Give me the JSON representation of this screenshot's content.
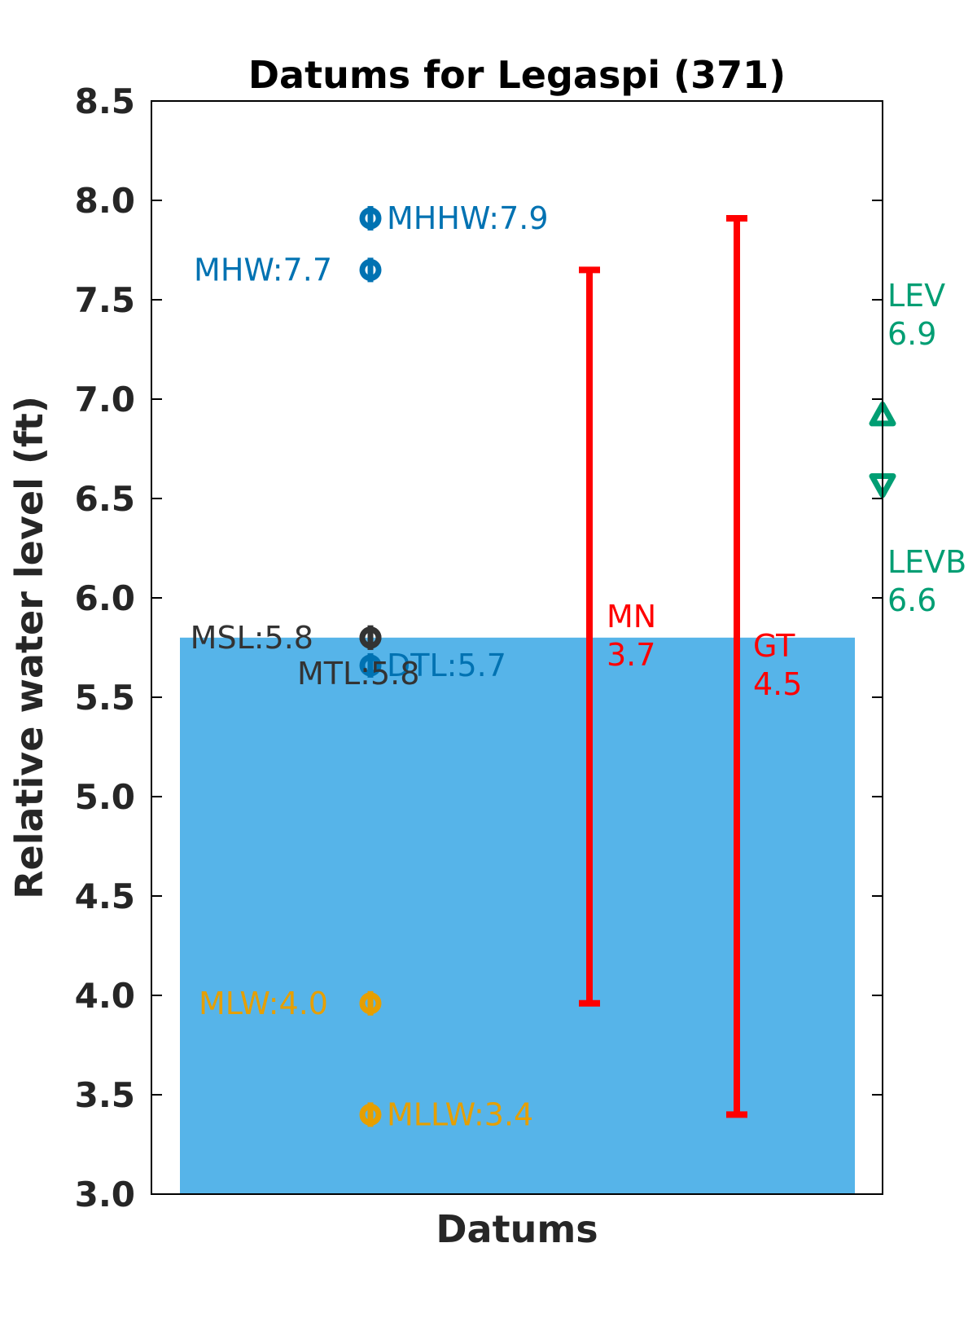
{
  "chart_data": {
    "type": "scatter",
    "title": "Datums for Legaspi (371)",
    "xlabel": "Datums",
    "ylabel": "Relative water level (ft)",
    "ylim": [
      3.0,
      8.5
    ],
    "yticks": [
      "3.0",
      "3.5",
      "4.0",
      "4.5",
      "5.0",
      "5.5",
      "6.0",
      "6.5",
      "7.0",
      "7.5",
      "8.0",
      "8.5"
    ],
    "grid": false,
    "colors": {
      "high": "#0072B2",
      "mean": "#333333",
      "low": "#E69F00",
      "range": "#FF0000",
      "extreme": "#009E73",
      "fill": "#56B4E9"
    },
    "fill_level": 5.8,
    "datums": [
      {
        "label": "MHHW:7.9",
        "value": 7.91,
        "group": "high"
      },
      {
        "label": "MHW:7.7",
        "value": 7.65,
        "group": "high"
      },
      {
        "label": "MSL:5.8",
        "value": 5.8,
        "group": "mean"
      },
      {
        "label": "DTL:5.7",
        "value": 5.66,
        "group": "high"
      },
      {
        "label": "MTL:5.8",
        "value": 5.8,
        "group": "mean"
      },
      {
        "label": "MLW:4.0",
        "value": 3.96,
        "group": "low"
      },
      {
        "label": "MLLW:3.4",
        "value": 3.4,
        "group": "low"
      }
    ],
    "ranges": [
      {
        "name": "MN",
        "value_label": "3.7",
        "low": 3.96,
        "high": 7.65
      },
      {
        "name": "GT",
        "value_label": "4.5",
        "low": 3.4,
        "high": 7.91
      }
    ],
    "extremes": [
      {
        "name": "LEV",
        "value_label": "6.9",
        "value": 6.92,
        "marker": "triangle-up"
      },
      {
        "name": "LEVB",
        "value_label": "6.6",
        "value": 6.57,
        "marker": "triangle-down"
      }
    ]
  }
}
